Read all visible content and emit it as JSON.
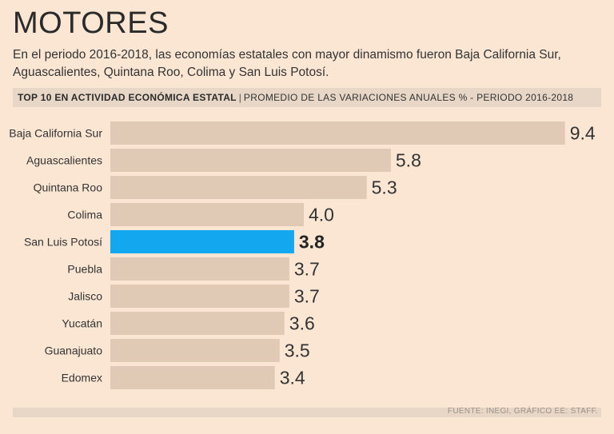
{
  "header": {
    "title": "MOTORES",
    "subtitle": "En el periodo 2016-2018, las economías estatales con mayor dinamismo fueron Baja California Sur, Aguascalientes, Quintana Roo, Colima y San Luis Potosí."
  },
  "band": {
    "bold": "TOP 10 EN ACTIVIDAD ECONÓMICA ESTATAL",
    "separator": "|",
    "subtitle": "PROMEDIO DE LAS VARIACIONES ANUALES % - PERIODO 2016-2018"
  },
  "footer": {
    "source": "FUENTE: INEGI, GRÁFICO EE: STAFF."
  },
  "colors": {
    "bar": "#e0cab6",
    "highlight": "#13a7ef"
  },
  "chart_data": {
    "type": "bar",
    "orientation": "horizontal",
    "title": "TOP 10 EN ACTIVIDAD ECONÓMICA ESTATAL",
    "subtitle": "PROMEDIO DE LAS VARIACIONES ANUALES % - PERIODO 2016-2018",
    "xlim": [
      0,
      10
    ],
    "grid": false,
    "highlight": "San Luis Potosí",
    "categories": [
      "Baja California Sur",
      "Aguascalientes",
      "Quintana Roo",
      "Colima",
      "San Luis Potosí",
      "Puebla",
      "Jalisco",
      "Yucatán",
      "Guanajuato",
      "Edomex"
    ],
    "values": [
      9.4,
      5.8,
      5.3,
      4.0,
      3.8,
      3.7,
      3.7,
      3.6,
      3.5,
      3.4
    ],
    "value_labels": [
      "9.4",
      "5.8",
      "5.3",
      "4.0",
      "3.8",
      "3.7",
      "3.7",
      "3.6",
      "3.5",
      "3.4"
    ]
  }
}
